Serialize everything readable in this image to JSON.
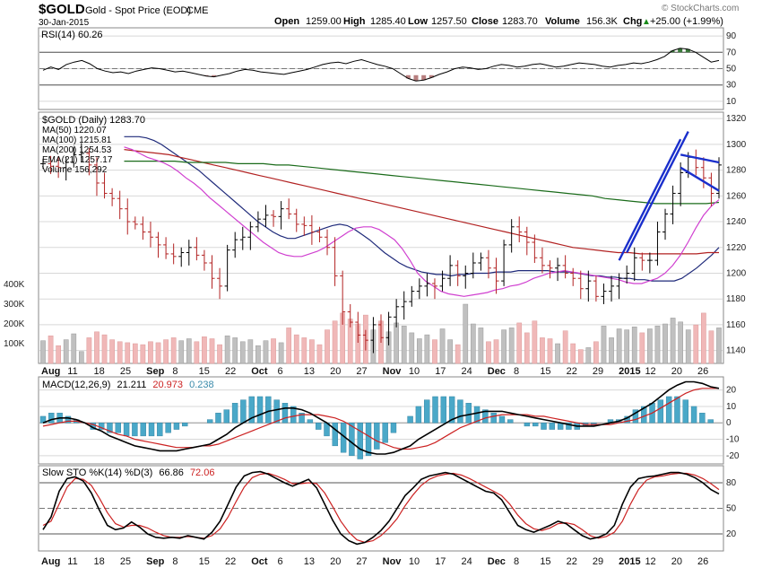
{
  "header": {
    "symbol": "$GOLD",
    "name": "Gold - Spot Price (EOD)",
    "exchange": "CME",
    "date": "30-Jan-2015",
    "open_label": "Open",
    "open": "1259.00",
    "high_label": "High",
    "high": "1285.40",
    "low_label": "Low",
    "low": "1257.50",
    "close_label": "Close",
    "close": "1283.70",
    "volume_label": "Volume",
    "volume": "156.3K",
    "chg_label": "Chg",
    "chg": "+25.00 (+1.99%)",
    "chg_arrow": "▲",
    "watermark": "© StockCharts.com"
  },
  "rsi": {
    "legend": "RSI(14) 60.26",
    "ticks": [
      "90",
      "70",
      "50",
      "30",
      "10"
    ],
    "values": [
      48,
      52,
      49,
      55,
      58,
      60,
      56,
      50,
      47,
      45,
      46,
      44,
      47,
      49,
      51,
      50,
      48,
      46,
      47,
      45,
      43,
      41,
      40,
      42,
      44,
      47,
      49,
      48,
      46,
      45,
      44,
      43,
      45,
      47,
      49,
      52,
      55,
      57,
      58,
      56,
      59,
      61,
      58,
      55,
      53,
      50,
      44,
      38,
      35,
      36,
      39,
      43,
      46,
      50,
      52,
      51,
      49,
      50,
      53,
      55,
      54,
      52,
      53,
      55,
      56,
      54,
      52,
      53,
      55,
      57,
      56,
      55,
      53,
      52,
      54,
      55,
      57,
      56,
      58,
      61,
      65,
      72,
      75,
      74,
      70,
      64,
      58,
      60
    ]
  },
  "price": {
    "legend_title": "$GOLD (Daily) 1283.70",
    "legend_items": [
      {
        "text": "MA(50) 1220.07",
        "color": "#1f2a7a"
      },
      {
        "text": "MA(100) 1215.81",
        "color": "#b22222"
      },
      {
        "text": "MA(200) 1254.53",
        "color": "#1a6b1a"
      },
      {
        "text": "EMA(21) 1257.17",
        "color": "#d040d0"
      },
      {
        "text": "Volume 156,292",
        "color": "#666666"
      }
    ],
    "ticks": [
      "1320",
      "1300",
      "1280",
      "1260",
      "1240",
      "1220",
      "1200",
      "1180",
      "1160",
      "1140"
    ],
    "volume_ticks": [
      "400K",
      "300K",
      "200K",
      "100K"
    ],
    "closes": [
      1285,
      1283,
      1282,
      1286,
      1292,
      1293,
      1284,
      1270,
      1262,
      1258,
      1250,
      1240,
      1238,
      1232,
      1228,
      1222,
      1215,
      1213,
      1216,
      1220,
      1214,
      1208,
      1196,
      1190,
      1218,
      1226,
      1228,
      1236,
      1242,
      1245,
      1244,
      1250,
      1246,
      1238,
      1237,
      1232,
      1228,
      1220,
      1198,
      1170,
      1162,
      1152,
      1148,
      1160,
      1150,
      1166,
      1174,
      1178,
      1186,
      1190,
      1192,
      1190,
      1196,
      1206,
      1198,
      1200,
      1208,
      1212,
      1204,
      1194,
      1222,
      1236,
      1232,
      1224,
      1212,
      1206,
      1204,
      1206,
      1200,
      1196,
      1188,
      1194,
      1182,
      1186,
      1190,
      1196,
      1200,
      1212,
      1210,
      1210,
      1232,
      1246,
      1262,
      1278,
      1290,
      1282,
      1274,
      1262,
      1284
    ],
    "volumes": [
      115,
      140,
      90,
      120,
      150,
      60,
      130,
      160,
      145,
      120,
      110,
      105,
      100,
      95,
      110,
      105,
      120,
      130,
      115,
      125,
      110,
      135,
      125,
      95,
      140,
      130,
      110,
      120,
      90,
      115,
      125,
      105,
      180,
      145,
      130,
      120,
      95,
      170,
      215,
      255,
      225,
      200,
      245,
      170,
      215,
      160,
      205,
      190,
      155,
      125,
      145,
      120,
      175,
      120,
      95,
      300,
      200,
      180,
      110,
      120,
      170,
      180,
      205,
      155,
      215,
      130,
      125,
      100,
      165,
      100,
      70,
      80,
      110,
      190,
      130,
      175,
      170,
      185,
      155,
      175,
      190,
      200,
      230,
      210,
      170,
      195,
      255,
      165,
      180
    ],
    "ma50": [
      1306,
      1306,
      1306,
      1305,
      1303,
      1300,
      1296,
      1292,
      1288,
      1284,
      1280,
      1275,
      1270,
      1265,
      1260,
      1255,
      1250,
      1245,
      1240,
      1236,
      1232,
      1229,
      1227,
      1227,
      1229,
      1231,
      1233,
      1235,
      1237,
      1238,
      1237,
      1234,
      1230,
      1226,
      1221,
      1216,
      1212,
      1208,
      1205,
      1203,
      1201,
      1200,
      1199,
      1199,
      1198,
      1199,
      1199,
      1200,
      1200,
      1200,
      1201,
      1201,
      1201,
      1202,
      1202,
      1202,
      1202,
      1202,
      1201,
      1201,
      1201,
      1200,
      1199,
      1198,
      1198,
      1197,
      1197,
      1196,
      1196,
      1195,
      1195,
      1194,
      1194,
      1194,
      1194,
      1196,
      1200,
      1204,
      1209,
      1214,
      1220
    ],
    "ma100": [
      1296,
      1295,
      1294,
      1293,
      1292,
      1290,
      1288,
      1286,
      1284,
      1282,
      1280,
      1278,
      1276,
      1274,
      1272,
      1270,
      1268,
      1266,
      1264,
      1262,
      1260,
      1258,
      1256,
      1254,
      1252,
      1250,
      1248,
      1246,
      1244,
      1242,
      1240,
      1238,
      1236,
      1234,
      1232,
      1230,
      1228,
      1226,
      1224,
      1222,
      1220,
      1219,
      1218,
      1217,
      1216,
      1216,
      1215,
      1215,
      1215,
      1215,
      1215,
      1215,
      1216,
      1216
    ],
    "ma200": [
      1287,
      1287,
      1287,
      1287,
      1287,
      1286,
      1286,
      1286,
      1286,
      1285,
      1285,
      1285,
      1284,
      1284,
      1283,
      1282,
      1281,
      1280,
      1279,
      1278,
      1277,
      1276,
      1275,
      1274,
      1273,
      1272,
      1271,
      1270,
      1269,
      1268,
      1267,
      1266,
      1265,
      1264,
      1263,
      1262,
      1261,
      1260,
      1258,
      1257,
      1256,
      1255,
      1254,
      1254,
      1254,
      1254,
      1254,
      1255
    ],
    "ema21": [
      1298,
      1296,
      1293,
      1290,
      1288,
      1286,
      1283,
      1279,
      1274,
      1270,
      1265,
      1259,
      1254,
      1249,
      1244,
      1239,
      1234,
      1229,
      1224,
      1220,
      1216,
      1214,
      1213,
      1213,
      1215,
      1217,
      1220,
      1224,
      1228,
      1232,
      1235,
      1236,
      1236,
      1234,
      1230,
      1226,
      1219,
      1210,
      1200,
      1194,
      1190,
      1186,
      1184,
      1183,
      1182,
      1183,
      1184,
      1185,
      1187,
      1188,
      1190,
      1191,
      1193,
      1196,
      1198,
      1200,
      1201,
      1202,
      1201,
      1200,
      1199,
      1198,
      1197,
      1196,
      1195,
      1193,
      1192,
      1192,
      1194,
      1196,
      1200,
      1206,
      1214,
      1224,
      1235,
      1245,
      1252,
      1257
    ]
  },
  "macd": {
    "legend_prefix": "MACD(12,26,9)",
    "legend_macd": "21.211",
    "legend_signal": "20.973",
    "legend_hist": "0.238",
    "ticks": [
      "20",
      "10",
      "0",
      "-10",
      "-20"
    ],
    "macd": [
      0,
      2,
      3,
      3,
      2,
      0,
      -3,
      -5,
      -8,
      -10,
      -12,
      -14,
      -15,
      -16,
      -17,
      -17,
      -17,
      -16,
      -15,
      -14,
      -13,
      -10,
      -7,
      -3,
      0,
      3,
      5,
      7,
      8,
      9,
      9,
      8,
      6,
      3,
      0,
      -4,
      -8,
      -12,
      -16,
      -18,
      -19,
      -19,
      -18,
      -16,
      -14,
      -10,
      -7,
      -4,
      -1,
      2,
      4,
      5,
      6,
      7,
      7,
      7,
      6,
      5,
      4,
      3,
      2,
      1,
      0,
      -1,
      -2,
      -2,
      -2,
      -1,
      0,
      1,
      3,
      6,
      9,
      12,
      16,
      20,
      23,
      25,
      25,
      24,
      22,
      21
    ],
    "signal": [
      -2,
      -1,
      0,
      1,
      1,
      0,
      -1,
      -3,
      -5,
      -7,
      -8,
      -10,
      -11,
      -12,
      -13,
      -14,
      -15,
      -15,
      -15,
      -14,
      -14,
      -13,
      -11,
      -9,
      -7,
      -5,
      -3,
      -1,
      1,
      3,
      4,
      5,
      5,
      5,
      4,
      3,
      1,
      -2,
      -5,
      -8,
      -11,
      -13,
      -15,
      -16,
      -16,
      -15,
      -14,
      -12,
      -9,
      -6,
      -3,
      -1,
      1,
      3,
      4,
      5,
      5,
      5,
      5,
      4,
      4,
      3,
      2,
      1,
      0,
      -1,
      -1,
      -1,
      -1,
      0,
      1,
      2,
      4,
      6,
      9,
      12,
      15,
      18,
      20,
      21,
      21,
      21
    ]
  },
  "sto": {
    "legend_prefix": "Slow STO %K(14) %D(3)",
    "legend_k": "66.86",
    "legend_d": "72.06",
    "ticks": [
      "80",
      "50",
      "20"
    ],
    "k": [
      25,
      40,
      70,
      85,
      87,
      82,
      68,
      48,
      30,
      25,
      27,
      34,
      28,
      20,
      16,
      15,
      16,
      15,
      18,
      16,
      14,
      22,
      35,
      55,
      75,
      88,
      92,
      93,
      90,
      85,
      80,
      76,
      80,
      84,
      74,
      55,
      36,
      20,
      12,
      8,
      10,
      16,
      24,
      35,
      50,
      65,
      74,
      84,
      88,
      90,
      92,
      90,
      85,
      80,
      75,
      70,
      68,
      60,
      45,
      30,
      25,
      22,
      26,
      30,
      35,
      32,
      25,
      18,
      14,
      16,
      20,
      30,
      55,
      75,
      85,
      87,
      88,
      90,
      92,
      92,
      90,
      86,
      80,
      72,
      67
    ],
    "d": [
      30,
      35,
      55,
      75,
      85,
      84,
      77,
      62,
      45,
      32,
      28,
      30,
      30,
      27,
      22,
      18,
      16,
      16,
      17,
      16,
      15,
      18,
      26,
      40,
      58,
      75,
      86,
      90,
      91,
      88,
      84,
      79,
      79,
      80,
      79,
      68,
      52,
      35,
      22,
      13,
      10,
      12,
      18,
      27,
      38,
      53,
      66,
      77,
      84,
      88,
      90,
      91,
      89,
      85,
      80,
      75,
      70,
      65,
      55,
      42,
      32,
      26,
      24,
      27,
      32,
      33,
      31,
      25,
      18,
      15,
      17,
      22,
      35,
      55,
      72,
      83,
      87,
      88,
      90,
      91,
      91,
      89,
      85,
      79,
      72
    ]
  },
  "x_axis": {
    "labels": [
      {
        "text": "Aug",
        "bold": true
      },
      {
        "text": "11",
        "bold": false
      },
      {
        "text": "18",
        "bold": false
      },
      {
        "text": "25",
        "bold": false
      },
      {
        "text": "Sep",
        "bold": true
      },
      {
        "text": "8",
        "bold": false
      },
      {
        "text": "15",
        "bold": false
      },
      {
        "text": "22",
        "bold": false
      },
      {
        "text": "Oct",
        "bold": true
      },
      {
        "text": "6",
        "bold": false
      },
      {
        "text": "13",
        "bold": false
      },
      {
        "text": "20",
        "bold": false
      },
      {
        "text": "27",
        "bold": false
      },
      {
        "text": "Nov",
        "bold": true
      },
      {
        "text": "10",
        "bold": false
      },
      {
        "text": "17",
        "bold": false
      },
      {
        "text": "24",
        "bold": false
      },
      {
        "text": "Dec",
        "bold": true
      },
      {
        "text": "8",
        "bold": false
      },
      {
        "text": "15",
        "bold": false
      },
      {
        "text": "22",
        "bold": false
      },
      {
        "text": "29",
        "bold": false
      },
      {
        "text": "2015",
        "bold": true
      },
      {
        "text": "12",
        "bold": false
      },
      {
        "text": "20",
        "bold": false
      },
      {
        "text": "26",
        "bold": false
      }
    ]
  },
  "colors": {
    "up_candle": "#000000",
    "down_candle": "#b22222",
    "volume_up": "#c0c0c0",
    "volume_down": "#f0b8b8",
    "rsi_over": "#3a7a3a",
    "rsi_under": "#9a4a4a",
    "macd_line": "#000000",
    "signal_line": "#cc2222",
    "hist": "#4aa8c8",
    "trendline": "#1a2fcc"
  }
}
